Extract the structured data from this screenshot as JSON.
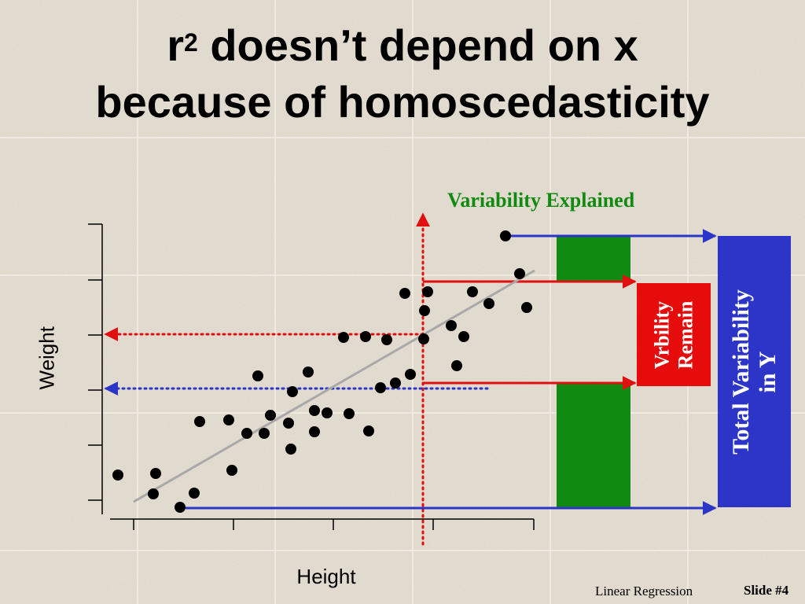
{
  "slide": {
    "title_line1_prefix": "r",
    "title_superscript": "2",
    "title_line1_suffix": " doesn’t depend on x",
    "title_line2": "because of homoscedasticity",
    "footer_left": "Linear Regression",
    "footer_right": "Slide #4"
  },
  "labels": {
    "variability_explained": "Variability Explained",
    "variability_remain_line1": "Vrbility",
    "variability_remain_line2": "Remain",
    "total_variability_line1": "Total Variability",
    "total_variability_line2": "in Y",
    "y_axis": "Weight",
    "x_axis": "Height"
  },
  "colors": {
    "explained": "#118a11",
    "remain": "#e60c0c",
    "total": "#2c35c8",
    "dotted_red": "#e01010",
    "dotted_blue": "#2b35c8",
    "regression_line": "#a8a8a8"
  },
  "chart_data": {
    "type": "scatter",
    "xlabel": "Height",
    "ylabel": "Weight",
    "title": "",
    "grid": false,
    "x_ticks": 5,
    "y_ticks": 6,
    "points": [
      [
        150,
        604
      ],
      [
        195,
        628
      ],
      [
        198,
        602
      ],
      [
        229,
        645
      ],
      [
        247,
        627
      ],
      [
        254,
        536
      ],
      [
        291,
        534
      ],
      [
        295,
        598
      ],
      [
        314,
        551
      ],
      [
        328,
        478
      ],
      [
        336,
        551
      ],
      [
        344,
        528
      ],
      [
        367,
        538
      ],
      [
        370,
        571
      ],
      [
        372,
        498
      ],
      [
        392,
        473
      ],
      [
        400,
        522
      ],
      [
        400,
        549
      ],
      [
        416,
        525
      ],
      [
        437,
        429
      ],
      [
        444,
        526
      ],
      [
        465,
        428
      ],
      [
        469,
        548
      ],
      [
        484,
        493
      ],
      [
        492,
        432
      ],
      [
        503,
        487
      ],
      [
        515,
        373
      ],
      [
        522,
        476
      ],
      [
        539,
        431
      ],
      [
        540,
        395
      ],
      [
        544,
        371
      ],
      [
        574,
        414
      ],
      [
        581,
        465
      ],
      [
        590,
        428
      ],
      [
        601,
        371
      ],
      [
        622,
        386
      ],
      [
        643,
        300
      ],
      [
        661,
        348
      ],
      [
        670,
        391
      ]
    ],
    "regression_line": [
      [
        170,
        638
      ],
      [
        680,
        344
      ]
    ]
  }
}
